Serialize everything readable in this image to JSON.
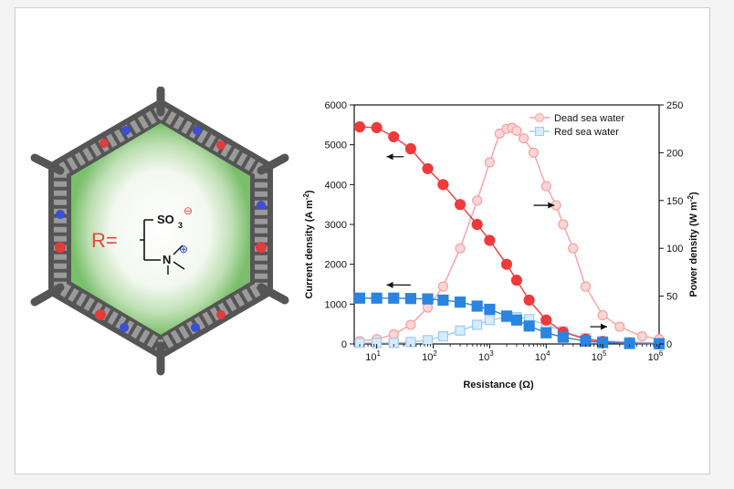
{
  "figure": {
    "molecule": {
      "r_label": "R=",
      "group1": "SO",
      "group1_sub": "3",
      "group1_charge": "⊖",
      "group2": "N",
      "group2_charge": "⊕"
    }
  },
  "chart_data": {
    "type": "scatter",
    "x_scale": "log",
    "xlabel": "Resistance (Ω)",
    "ylabel_left": "Current density (A m",
    "ylabel_left_sup": "-2",
    "ylabel_left_end": ")",
    "ylabel_right": "Power density (W m",
    "ylabel_right_sup": "-2",
    "ylabel_right_end": ")",
    "xlim": [
      4,
      1000000
    ],
    "ylim_left": [
      0,
      6000
    ],
    "ylim_right": [
      0,
      250
    ],
    "x_ticks": [
      {
        "base": "10",
        "exp": "1",
        "value": 10
      },
      {
        "base": "10",
        "exp": "2",
        "value": 100
      },
      {
        "base": "10",
        "exp": "3",
        "value": 1000
      },
      {
        "base": "10",
        "exp": "4",
        "value": 10000
      },
      {
        "base": "10",
        "exp": "5",
        "value": 100000
      },
      {
        "base": "10",
        "exp": "6",
        "value": 1000000
      }
    ],
    "y_left_ticks": [
      0,
      1000,
      2000,
      3000,
      4000,
      5000,
      6000
    ],
    "y_right_ticks": [
      0,
      50,
      100,
      150,
      200,
      250
    ],
    "legend": "top-right",
    "colors": {
      "red": "#f03a3a",
      "red_light": "#f7a0a0",
      "blue": "#2a84e0",
      "blue_light": "#9ecbf2"
    },
    "series": [
      {
        "name": "Dead sea water",
        "quantity": "power",
        "axis": "right",
        "x": [
          5,
          10,
          20,
          40,
          80,
          150,
          300,
          600,
          1000,
          1500,
          2000,
          2500,
          3000,
          4000,
          6000,
          10000,
          15000,
          20000,
          30000,
          50000,
          100000,
          200000,
          500000,
          1000000
        ],
        "y": [
          3,
          5,
          10,
          20,
          38,
          60,
          100,
          150,
          190,
          220,
          225,
          226,
          223,
          215,
          200,
          165,
          145,
          125,
          100,
          60,
          30,
          18,
          8,
          5
        ]
      },
      {
        "name": "Red sea water",
        "quantity": "power",
        "axis": "right",
        "x": [
          5,
          10,
          20,
          40,
          80,
          150,
          300,
          600,
          1000,
          2000,
          3000,
          5000,
          10000,
          20000,
          50000,
          100000,
          300000,
          1000000
        ],
        "y": [
          1,
          1,
          1,
          2,
          4,
          8,
          14,
          20,
          25,
          28,
          28,
          26,
          20,
          13,
          6,
          3,
          2,
          1
        ]
      },
      {
        "name": "",
        "quantity": "current",
        "axis": "left",
        "color": "red",
        "x": [
          5,
          10,
          20,
          40,
          80,
          150,
          300,
          600,
          1000,
          2000,
          3000,
          5000,
          10000,
          20000,
          50000,
          100000,
          300000,
          1000000
        ],
        "y": [
          5450,
          5430,
          5200,
          4900,
          4400,
          4000,
          3500,
          3000,
          2600,
          2000,
          1600,
          1100,
          600,
          300,
          120,
          60,
          20,
          5
        ]
      },
      {
        "name": "",
        "quantity": "current",
        "axis": "left",
        "color": "blue",
        "x": [
          5,
          10,
          20,
          40,
          80,
          150,
          300,
          600,
          1000,
          2000,
          3000,
          5000,
          10000,
          20000,
          50000,
          100000,
          300000,
          1000000
        ],
        "y": [
          1150,
          1150,
          1150,
          1140,
          1130,
          1100,
          1050,
          950,
          870,
          700,
          600,
          450,
          280,
          170,
          70,
          35,
          12,
          4
        ]
      }
    ]
  }
}
